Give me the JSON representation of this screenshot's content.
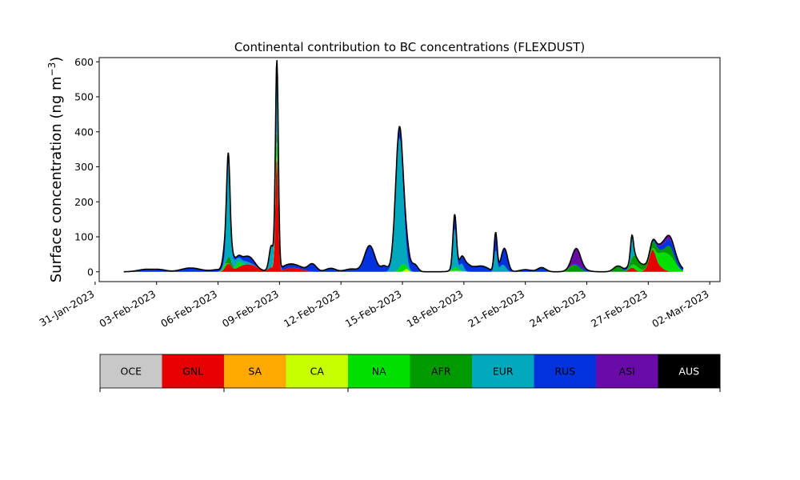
{
  "chart_data": {
    "type": "area",
    "title": "Continental contribution to BC concentrations (FLEXDUST)",
    "ylabel": "Surface concentration (ng m",
    "ylabel_sup": "−3",
    "ylabel_close": ")",
    "xlabel": "",
    "stacked": true,
    "x_start_date": "2023-01-31",
    "x_unit": "days",
    "xlim": [
      0.2,
      30.5
    ],
    "ylim": [
      -28,
      612
    ],
    "x_tick_labels": [
      "31-Jan-2023",
      "03-Feb-2023",
      "06-Feb-2023",
      "09-Feb-2023",
      "12-Feb-2023",
      "15-Feb-2023",
      "18-Feb-2023",
      "21-Feb-2023",
      "24-Feb-2023",
      "27-Feb-2023",
      "02-Mar-2023"
    ],
    "x_tick_days": [
      0,
      3,
      6,
      9,
      12,
      15,
      18,
      21,
      24,
      27,
      30
    ],
    "y_ticks": [
      0,
      100,
      200,
      300,
      400,
      500,
      600
    ],
    "grid": false,
    "legend": "colorbar below",
    "series": [
      {
        "name": "OCE",
        "color": "#c8c8c8",
        "peaks": [
          [
            17.6,
            3,
            0.3
          ]
        ]
      },
      {
        "name": "GNL",
        "color": "#e60000",
        "peaks": [
          [
            6.5,
            22,
            0.15
          ],
          [
            7.2,
            15,
            0.3
          ],
          [
            7.7,
            15,
            0.3
          ],
          [
            8.6,
            12,
            0.15
          ],
          [
            8.87,
            320,
            0.07
          ],
          [
            9.5,
            10,
            0.3
          ],
          [
            10.0,
            6,
            0.3
          ],
          [
            26.2,
            12,
            0.15
          ],
          [
            27.2,
            45,
            0.15
          ],
          [
            27.35,
            20,
            0.3
          ]
        ]
      },
      {
        "name": "SA",
        "color": "#ffa800",
        "peaks": [
          [
            8.85,
            10,
            0.08
          ]
        ]
      },
      {
        "name": "CA",
        "color": "#c8ff00",
        "peaks": [
          [
            15.2,
            8,
            0.1
          ]
        ]
      },
      {
        "name": "NA",
        "color": "#00e000",
        "peaks": [
          [
            6.3,
            10,
            0.1
          ],
          [
            7.0,
            15,
            0.12
          ],
          [
            8.85,
            40,
            0.08
          ],
          [
            15.0,
            20,
            0.15
          ],
          [
            17.6,
            10,
            0.15
          ],
          [
            26.4,
            12,
            0.2
          ],
          [
            27.6,
            20,
            0.2
          ],
          [
            28.0,
            45,
            0.3
          ]
        ]
      },
      {
        "name": "AFR",
        "color": "#009a00",
        "peaks": [
          [
            6.55,
            20,
            0.1
          ],
          [
            8.85,
            30,
            0.07
          ],
          [
            23.4,
            20,
            0.25
          ],
          [
            25.5,
            15,
            0.2
          ],
          [
            26.3,
            25,
            0.15
          ],
          [
            26.7,
            15,
            0.2
          ],
          [
            27.3,
            20,
            0.2
          ],
          [
            28.05,
            25,
            0.2
          ]
        ]
      },
      {
        "name": "EUR",
        "color": "#00a8bc",
        "peaks": [
          [
            6.5,
            250,
            0.08
          ],
          [
            6.62,
            25,
            0.2
          ],
          [
            7.2,
            10,
            0.3
          ],
          [
            8.6,
            60,
            0.1
          ],
          [
            8.88,
            200,
            0.07
          ],
          [
            14.85,
            370,
            0.18
          ],
          [
            17.55,
            110,
            0.08
          ],
          [
            17.9,
            20,
            0.1
          ],
          [
            19.55,
            60,
            0.07
          ],
          [
            19.9,
            20,
            0.15
          ],
          [
            26.2,
            60,
            0.07
          ]
        ]
      },
      {
        "name": "RUS",
        "color": "#0033dd",
        "peaks": [
          [
            2.5,
            7,
            0.4
          ],
          [
            3.2,
            5,
            0.3
          ],
          [
            4.5,
            8,
            0.4
          ],
          [
            5.0,
            5,
            0.4
          ],
          [
            6.0,
            6,
            0.3
          ],
          [
            6.35,
            40,
            0.1
          ],
          [
            6.6,
            15,
            0.15
          ],
          [
            7.3,
            10,
            0.3
          ],
          [
            7.6,
            10,
            0.2
          ],
          [
            9.3,
            10,
            0.4
          ],
          [
            9.9,
            5,
            0.3
          ],
          [
            10.6,
            22,
            0.2
          ],
          [
            11.5,
            10,
            0.25
          ],
          [
            12.5,
            8,
            0.3
          ],
          [
            13.4,
            75,
            0.25
          ],
          [
            14.1,
            15,
            0.15
          ],
          [
            14.85,
            30,
            0.3
          ],
          [
            15.2,
            40,
            0.15
          ],
          [
            15.6,
            20,
            0.15
          ],
          [
            17.55,
            40,
            0.1
          ],
          [
            18.0,
            20,
            0.2
          ],
          [
            18.3,
            10,
            0.3
          ],
          [
            18.9,
            15,
            0.3
          ],
          [
            19.55,
            50,
            0.08
          ],
          [
            20.0,
            50,
            0.15
          ],
          [
            21.0,
            6,
            0.3
          ],
          [
            21.8,
            12,
            0.2
          ],
          [
            23.8,
            5,
            0.3
          ],
          [
            26.0,
            6,
            0.3
          ],
          [
            28.0,
            20,
            0.4
          ]
        ]
      },
      {
        "name": "ASI",
        "color": "#6a0aa8",
        "peaks": [
          [
            23.5,
            45,
            0.2
          ],
          [
            28.0,
            10,
            0.4
          ]
        ]
      },
      {
        "name": "AUS",
        "color": "#000000",
        "peaks": []
      }
    ]
  },
  "colorbar": {
    "labels": [
      "OCE",
      "GNL",
      "SA",
      "CA",
      "NA",
      "AFR",
      "EUR",
      "RUS",
      "ASI",
      "AUS"
    ],
    "colors": [
      "#c8c8c8",
      "#e60000",
      "#ffa800",
      "#c8ff00",
      "#00e000",
      "#009a00",
      "#00a8bc",
      "#0033dd",
      "#6a0aa8",
      "#000000"
    ],
    "text_colors": [
      "#000000",
      "#000000",
      "#000000",
      "#000000",
      "#000000",
      "#000000",
      "#000000",
      "#000000",
      "#000000",
      "#ffffff"
    ]
  }
}
